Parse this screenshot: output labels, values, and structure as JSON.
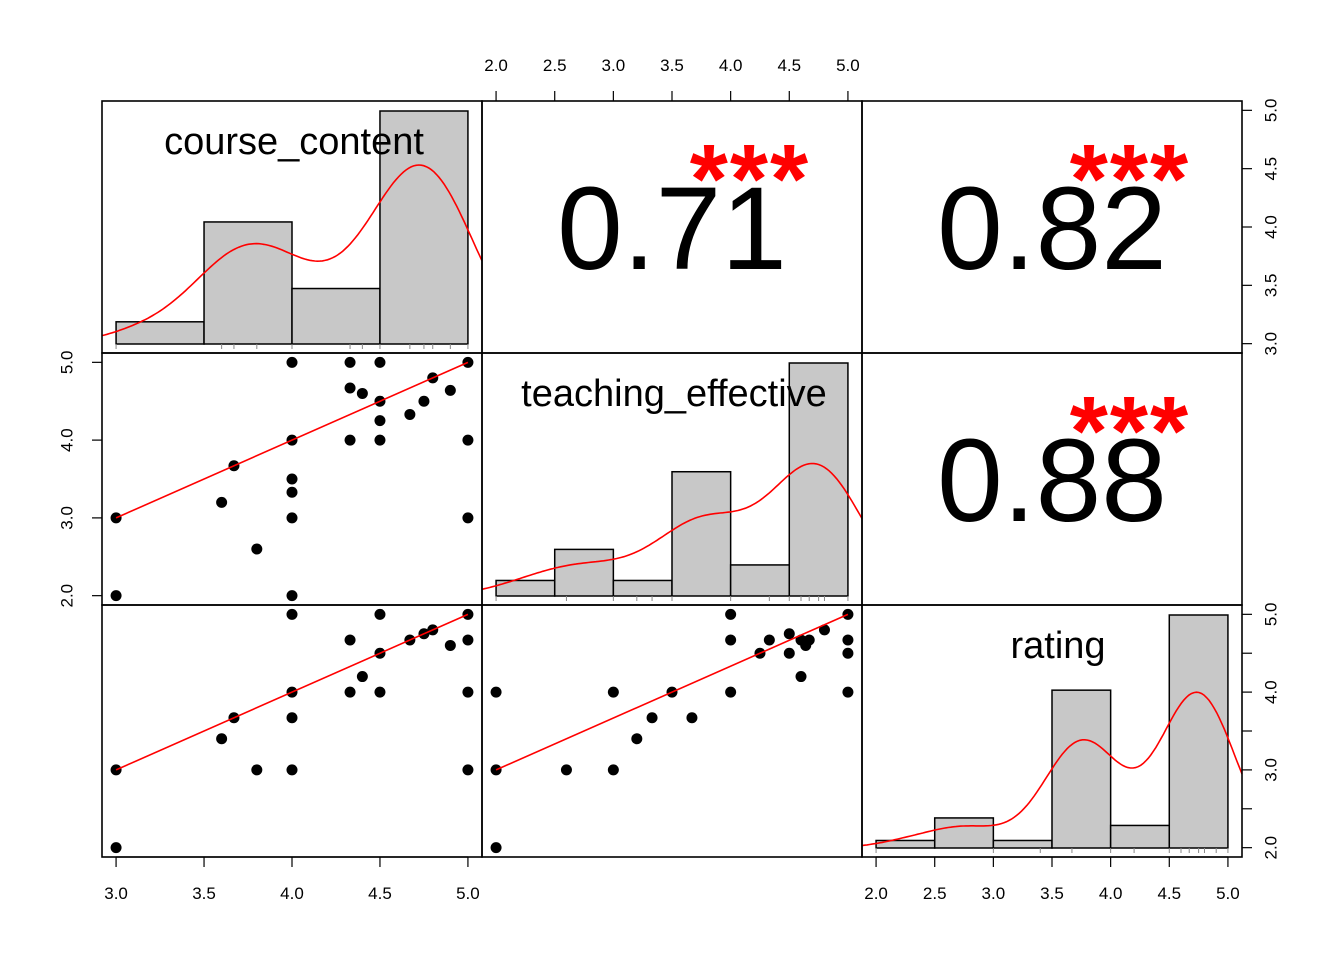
{
  "chart_data": {
    "type": "scatter",
    "variables": [
      "course_content",
      "teaching_effective",
      "rating"
    ],
    "ranges": {
      "course_content": [
        3.0,
        5.0
      ],
      "teaching_effective": [
        2.0,
        5.0
      ],
      "rating": [
        2.0,
        5.0
      ]
    },
    "tick_labels": {
      "course_content": [
        "3.0",
        "3.5",
        "4.0",
        "4.5",
        "5.0"
      ],
      "teaching_effective": [
        "2.0",
        "2.5",
        "3.0",
        "3.5",
        "4.0",
        "4.5",
        "5.0"
      ],
      "rating": [
        "2.0",
        "2.5",
        "3.0",
        "3.5",
        "4.0",
        "4.5",
        "5.0"
      ]
    },
    "left_tick_labels": [
      "2.0",
      "3.0",
      "4.0",
      "5.0"
    ],
    "correlations": [
      {
        "pair": [
          "course_content",
          "teaching_effective"
        ],
        "value": "0.71",
        "stars": "***"
      },
      {
        "pair": [
          "course_content",
          "rating"
        ],
        "value": "0.82",
        "stars": "***"
      },
      {
        "pair": [
          "teaching_effective",
          "rating"
        ],
        "value": "0.88",
        "stars": "***"
      }
    ],
    "histograms": {
      "course_content": {
        "breaks": [
          3.0,
          3.5,
          4.0,
          4.5,
          5.0
        ],
        "counts": [
          2,
          11,
          5,
          21
        ]
      },
      "teaching_effective": {
        "breaks": [
          2.0,
          2.5,
          3.0,
          3.5,
          4.0,
          4.5,
          5.0
        ],
        "counts": [
          1,
          3,
          1,
          8,
          2,
          15
        ]
      },
      "rating": {
        "breaks": [
          2.0,
          2.5,
          3.0,
          3.5,
          4.0,
          4.5,
          5.0
        ],
        "counts": [
          1,
          4,
          1,
          21,
          3,
          31
        ]
      }
    },
    "rugs": {
      "course_content": [
        3.0,
        3.6,
        3.67,
        3.8,
        4.0,
        4.33,
        4.4,
        4.5,
        4.67,
        4.75,
        4.8,
        4.9,
        5.0
      ],
      "teaching_effective": [
        2.0,
        2.6,
        3.0,
        3.2,
        3.33,
        3.5,
        4.0,
        4.33,
        4.5,
        4.6,
        4.67,
        4.75,
        4.8,
        5.0
      ],
      "rating": [
        2.0,
        3.0,
        3.4,
        3.67,
        4.0,
        4.2,
        4.5,
        4.6,
        4.67,
        4.75,
        4.8,
        4.9,
        5.0
      ]
    },
    "pairs": {
      "course_content__teaching_effective": [
        [
          3.0,
          3.0
        ],
        [
          3.0,
          2.0
        ],
        [
          3.6,
          3.2
        ],
        [
          3.67,
          3.67
        ],
        [
          3.8,
          2.6
        ],
        [
          4.0,
          5.0
        ],
        [
          4.0,
          4.0
        ],
        [
          4.0,
          3.5
        ],
        [
          4.0,
          3.33
        ],
        [
          4.0,
          3.0
        ],
        [
          4.0,
          2.0
        ],
        [
          4.33,
          5.0
        ],
        [
          4.33,
          4.67
        ],
        [
          4.33,
          4.0
        ],
        [
          4.4,
          4.6
        ],
        [
          4.5,
          5.0
        ],
        [
          4.5,
          4.5
        ],
        [
          4.5,
          4.25
        ],
        [
          4.5,
          4.0
        ],
        [
          4.67,
          4.33
        ],
        [
          4.75,
          4.5
        ],
        [
          4.8,
          4.8
        ],
        [
          4.9,
          4.64
        ],
        [
          5.0,
          5.0
        ],
        [
          5.0,
          4.0
        ],
        [
          5.0,
          3.0
        ]
      ],
      "course_content__rating": [
        [
          3.0,
          3.0
        ],
        [
          3.0,
          2.0
        ],
        [
          3.6,
          3.4
        ],
        [
          3.67,
          3.67
        ],
        [
          3.8,
          3.0
        ],
        [
          4.0,
          4.0
        ],
        [
          4.0,
          3.67
        ],
        [
          4.0,
          3.0
        ],
        [
          4.0,
          5.0
        ],
        [
          4.33,
          4.67
        ],
        [
          4.33,
          4.0
        ],
        [
          4.4,
          4.2
        ],
        [
          4.5,
          5.0
        ],
        [
          4.5,
          4.5
        ],
        [
          4.5,
          4.0
        ],
        [
          4.67,
          4.67
        ],
        [
          4.75,
          4.75
        ],
        [
          4.8,
          4.8
        ],
        [
          4.9,
          4.6
        ],
        [
          5.0,
          5.0
        ],
        [
          5.0,
          4.67
        ],
        [
          5.0,
          4.0
        ],
        [
          5.0,
          3.0
        ]
      ],
      "teaching_effective__rating": [
        [
          2.0,
          4.0
        ],
        [
          2.0,
          3.0
        ],
        [
          2.0,
          2.0
        ],
        [
          2.6,
          3.0
        ],
        [
          3.0,
          4.0
        ],
        [
          3.0,
          3.0
        ],
        [
          3.2,
          3.4
        ],
        [
          3.33,
          3.67
        ],
        [
          3.5,
          4.0
        ],
        [
          3.67,
          3.67
        ],
        [
          4.0,
          5.0
        ],
        [
          4.0,
          4.67
        ],
        [
          4.0,
          4.0
        ],
        [
          4.25,
          4.5
        ],
        [
          4.33,
          4.67
        ],
        [
          4.5,
          4.75
        ],
        [
          4.5,
          4.5
        ],
        [
          4.6,
          4.67
        ],
        [
          4.64,
          4.6
        ],
        [
          4.67,
          4.67
        ],
        [
          4.8,
          4.8
        ],
        [
          4.6,
          4.2
        ],
        [
          5.0,
          5.0
        ],
        [
          5.0,
          4.67
        ],
        [
          5.0,
          4.5
        ],
        [
          5.0,
          4.0
        ]
      ]
    },
    "fit_lines": {
      "course_content__teaching_effective": [
        [
          3.0,
          3.0
        ],
        [
          5.0,
          5.0
        ]
      ],
      "course_content__rating": [
        [
          3.0,
          3.0
        ],
        [
          5.0,
          5.0
        ]
      ],
      "teaching_effective__rating": [
        [
          2.0,
          3.0
        ],
        [
          5.0,
          5.0
        ]
      ]
    },
    "colors": {
      "points": "#000000",
      "fit": "#ff0000",
      "density": "#ff0000",
      "stars": "#ff0000",
      "bar_fill": "#c8c8c8",
      "text": "#000000"
    }
  }
}
